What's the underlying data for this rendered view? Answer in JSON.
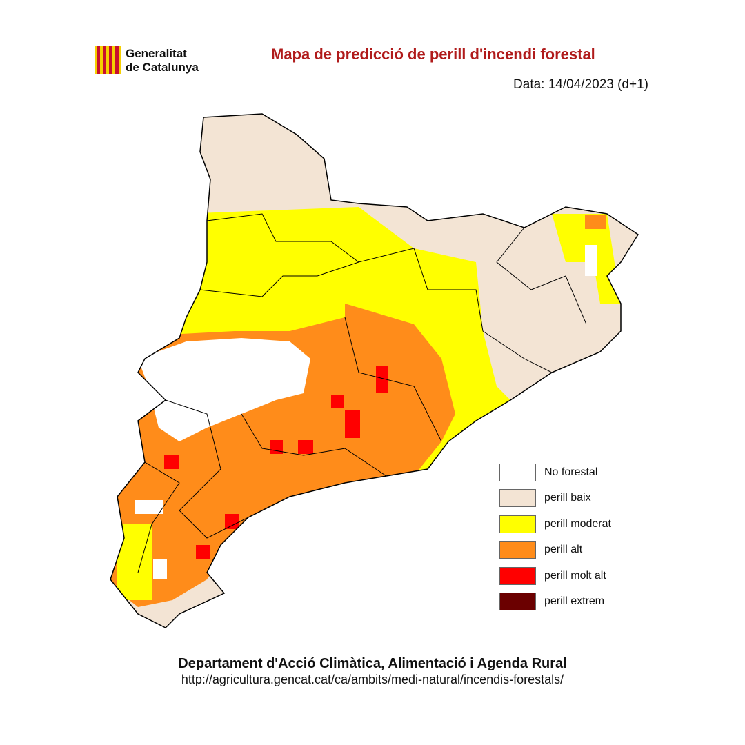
{
  "header": {
    "logo": [
      "Generalitat",
      "de Catalunya"
    ],
    "title": "Mapa de predicció de perill d'incendi forestal",
    "date": "Data: 14/04/2023 (d+1)"
  },
  "legend": {
    "items": [
      {
        "label": "No forestal",
        "color": "#ffffff"
      },
      {
        "label": "perill baix",
        "color": "#f3e4d4"
      },
      {
        "label": "perill moderat",
        "color": "#ffff00"
      },
      {
        "label": "perill alt",
        "color": "#ff8c1a"
      },
      {
        "label": "perill molt alt",
        "color": "#ff0000"
      },
      {
        "label": "perill extrem",
        "color": "#6b0000"
      }
    ]
  },
  "footer": {
    "department": "Departament d'Acció Climàtica, Alimentació i Agenda Rural",
    "url": "http://agricultura.gencat.cat/ca/ambits/medi-natural/incendis-forestals/"
  }
}
